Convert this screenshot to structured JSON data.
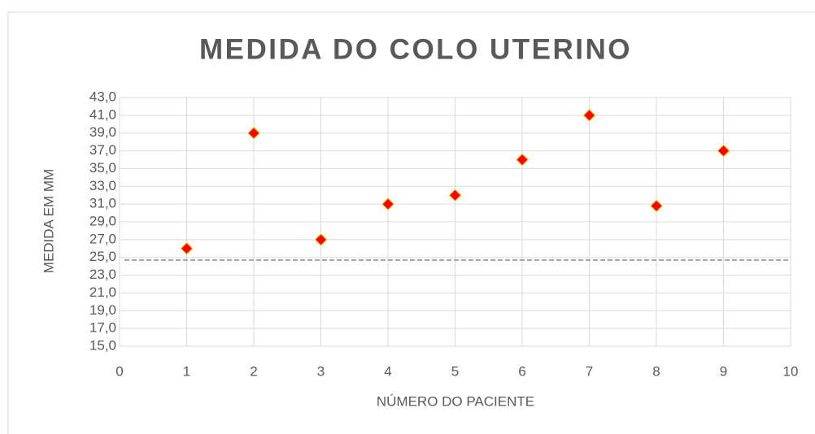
{
  "chart_data": {
    "type": "scatter",
    "title": "MEDIDA DO COLO UTERINO",
    "x_label": "NÚMERO DO PACIENTE",
    "y_label": "MEDIDA EM MM",
    "x": [
      1,
      2,
      3,
      4,
      5,
      6,
      7,
      8,
      9
    ],
    "values": [
      26,
      39,
      27,
      31,
      32,
      36,
      41,
      30.8,
      37
    ],
    "color": "#ff0000",
    "reference_line": 24.7,
    "xlim": [
      0,
      10
    ],
    "xticks": [
      0,
      1,
      2,
      3,
      4,
      5,
      6,
      7,
      8,
      9,
      10
    ],
    "ylim": [
      15,
      43
    ],
    "yticks": [
      {
        "value": 15,
        "label": "15,0"
      },
      {
        "value": 17,
        "label": "17,0"
      },
      {
        "value": 19,
        "label": "19,0"
      },
      {
        "value": 21,
        "label": "21,0"
      },
      {
        "value": 23,
        "label": "23,0"
      },
      {
        "value": 25,
        "label": "25,0"
      },
      {
        "value": 27,
        "label": "27,0"
      },
      {
        "value": 29,
        "label": "29,0"
      },
      {
        "value": 31,
        "label": "31,0"
      },
      {
        "value": 33,
        "label": "33,0"
      },
      {
        "value": 35,
        "label": "35,0"
      },
      {
        "value": 37,
        "label": "37,0"
      },
      {
        "value": 39,
        "label": "39,0"
      },
      {
        "value": 41,
        "label": "41,0"
      },
      {
        "value": 43,
        "label": "43,0"
      }
    ],
    "grid": true
  }
}
